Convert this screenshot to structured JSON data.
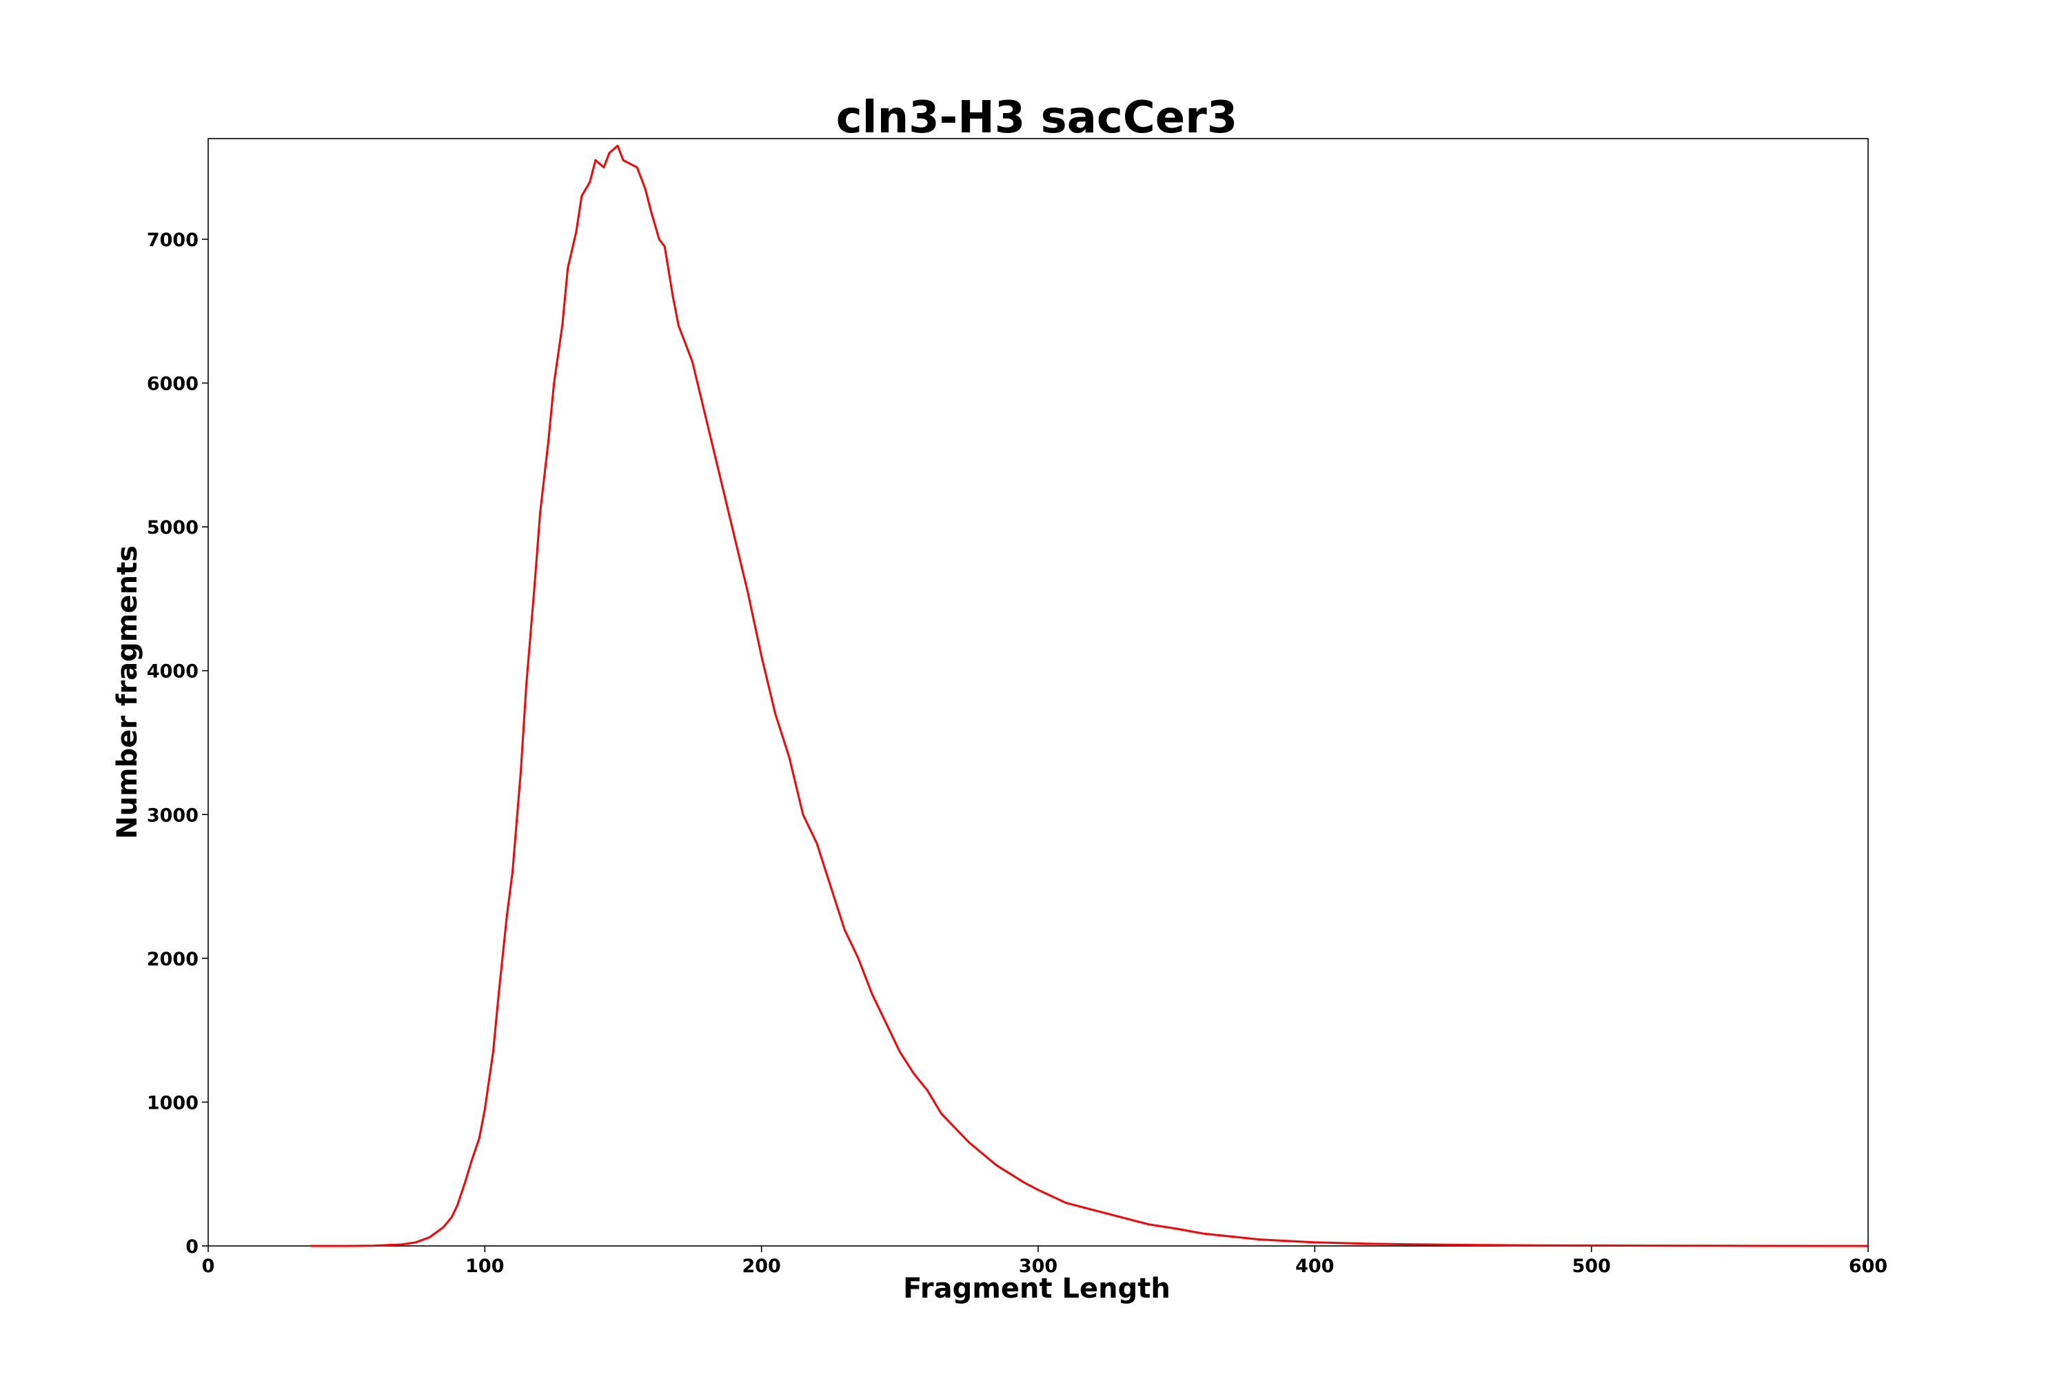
{
  "chart_data": {
    "type": "line",
    "title": "cln3-H3 sacCer3",
    "xlabel": "Fragment Length",
    "ylabel": "Number fragments",
    "xlim": [
      0,
      600
    ],
    "ylim": [
      0,
      7700
    ],
    "xticks": [
      0,
      100,
      200,
      300,
      400,
      500,
      600
    ],
    "yticks": [
      0,
      1000,
      2000,
      3000,
      4000,
      5000,
      6000,
      7000
    ],
    "grid": false,
    "legend": "none",
    "series": [
      {
        "color": "#ff0000",
        "x": [
          37,
          50,
          60,
          70,
          75,
          80,
          85,
          88,
          90,
          93,
          95,
          98,
          100,
          103,
          105,
          108,
          110,
          113,
          115,
          118,
          120,
          123,
          125,
          128,
          130,
          133,
          135,
          138,
          140,
          143,
          145,
          148,
          150,
          153,
          155,
          158,
          160,
          163,
          165,
          168,
          170,
          175,
          180,
          185,
          190,
          195,
          200,
          205,
          210,
          215,
          220,
          225,
          230,
          235,
          240,
          245,
          250,
          255,
          260,
          265,
          270,
          275,
          280,
          285,
          290,
          295,
          300,
          310,
          320,
          330,
          340,
          350,
          360,
          370,
          380,
          390,
          400,
          420,
          440,
          460,
          480,
          500,
          550,
          600
        ],
        "y": [
          0,
          0,
          2,
          10,
          25,
          60,
          130,
          200,
          280,
          450,
          580,
          750,
          950,
          1350,
          1750,
          2300,
          2600,
          3300,
          3900,
          4600,
          5100,
          5600,
          6000,
          6400,
          6800,
          7050,
          7300,
          7400,
          7550,
          7500,
          7600,
          7650,
          7550,
          7520,
          7500,
          7350,
          7200,
          7000,
          6950,
          6600,
          6400,
          6150,
          5750,
          5350,
          4950,
          4550,
          4100,
          3700,
          3400,
          3000,
          2800,
          2500,
          2200,
          2000,
          1750,
          1550,
          1350,
          1200,
          1080,
          920,
          820,
          720,
          640,
          560,
          500,
          440,
          390,
          300,
          250,
          200,
          150,
          120,
          85,
          65,
          45,
          35,
          25,
          15,
          10,
          6,
          4,
          3,
          1,
          0
        ]
      }
    ]
  }
}
